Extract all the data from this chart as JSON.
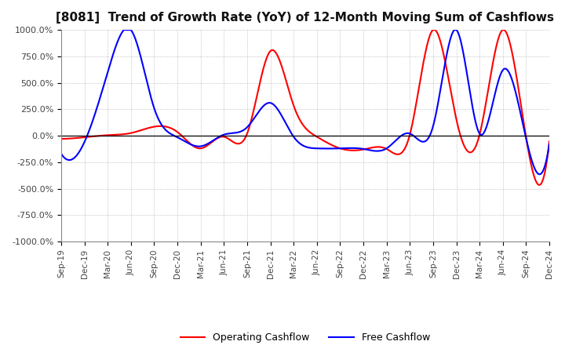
{
  "title": "[8081]  Trend of Growth Rate (YoY) of 12-Month Moving Sum of Cashflows",
  "title_fontsize": 11,
  "ylim": [
    -1000,
    1000
  ],
  "yticks": [
    -1000,
    -750,
    -500,
    -250,
    0,
    250,
    500,
    750,
    1000
  ],
  "ytick_labels": [
    "-1000.0%",
    "-750.0%",
    "-500.0%",
    "-250.0%",
    "0.0%",
    "250.0%",
    "500.0%",
    "750.0%",
    "1000.0%"
  ],
  "line_color_operating": "#ff0000",
  "line_color_free": "#0000ff",
  "legend_labels": [
    "Operating Cashflow",
    "Free Cashflow"
  ],
  "background_color": "#ffffff",
  "grid_color": "#b0b0b0",
  "x_labels": [
    "Sep-19",
    "Dec-19",
    "Mar-20",
    "Jun-20",
    "Sep-20",
    "Dec-20",
    "Mar-21",
    "Jun-21",
    "Sep-21",
    "Dec-21",
    "Mar-22",
    "Jun-22",
    "Sep-22",
    "Dec-22",
    "Mar-23",
    "Jun-23",
    "Sep-23",
    "Dec-23",
    "Mar-24",
    "Jun-24",
    "Sep-24",
    "Dec-24"
  ],
  "operating_cashflow": [
    -30,
    -15,
    5,
    25,
    85,
    35,
    -120,
    -10,
    20,
    800,
    285,
    -10,
    -120,
    -130,
    -125,
    10,
    1000,
    155,
    10,
    1000,
    -15,
    -55
  ],
  "free_cashflow": [
    -170,
    -60,
    600,
    1000,
    260,
    -15,
    -100,
    10,
    80,
    310,
    -10,
    -120,
    -120,
    -125,
    -120,
    20,
    90,
    1000,
    20,
    620,
    -25,
    -80
  ]
}
